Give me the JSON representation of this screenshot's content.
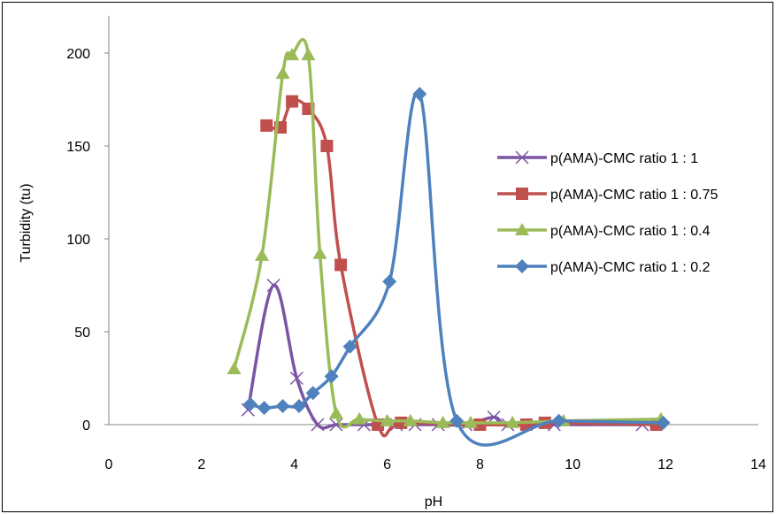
{
  "chart_data": {
    "type": "scatter",
    "title": "",
    "xlabel": "pH",
    "ylabel": "Turbidity (tu)",
    "xlim": [
      0,
      14
    ],
    "ylim": [
      0,
      220
    ],
    "x_ticks": [
      "0",
      "2",
      "4",
      "6",
      "8",
      "10",
      "12",
      "14"
    ],
    "y_ticks": [
      "0",
      "50",
      "100",
      "150",
      "200"
    ],
    "grid": false,
    "smooth_lines": true,
    "legend_position": "right",
    "series": [
      {
        "name": "p(AMA)-CMC ratio 1 : 1",
        "color": "#7b55a3",
        "marker": "x",
        "points": [
          [
            3.0,
            8
          ],
          [
            3.55,
            75
          ],
          [
            4.05,
            25
          ],
          [
            4.5,
            0
          ],
          [
            4.9,
            0
          ],
          [
            5.5,
            0
          ],
          [
            6.2,
            0
          ],
          [
            6.6,
            0
          ],
          [
            7.1,
            0
          ],
          [
            7.7,
            0
          ],
          [
            8.3,
            4
          ],
          [
            8.6,
            0
          ],
          [
            9.6,
            0
          ],
          [
            11.5,
            0
          ]
        ]
      },
      {
        "name": "p(AMA)-CMC ratio 1 : 0.75",
        "color": "#c0504d",
        "marker": "square",
        "points": [
          [
            3.4,
            161
          ],
          [
            3.7,
            160
          ],
          [
            3.95,
            174
          ],
          [
            4.3,
            170
          ],
          [
            4.7,
            150
          ],
          [
            5.0,
            86
          ],
          [
            5.8,
            0
          ],
          [
            6.3,
            1
          ],
          [
            8.0,
            0
          ],
          [
            9.0,
            0
          ],
          [
            9.4,
            1
          ],
          [
            11.8,
            0
          ]
        ]
      },
      {
        "name": "p(AMA)-CMC ratio 1 : 0.4",
        "color": "#9bbb59",
        "marker": "triangle",
        "points": [
          [
            2.7,
            30
          ],
          [
            3.3,
            91
          ],
          [
            3.75,
            189
          ],
          [
            3.95,
            199
          ],
          [
            4.3,
            199
          ],
          [
            4.55,
            92
          ],
          [
            4.9,
            6
          ],
          [
            5.4,
            3
          ],
          [
            6.0,
            2
          ],
          [
            6.5,
            2
          ],
          [
            7.2,
            1
          ],
          [
            7.8,
            1
          ],
          [
            8.7,
            1
          ],
          [
            9.8,
            2
          ],
          [
            11.9,
            3
          ]
        ]
      },
      {
        "name": "p(AMA)-CMC ratio 1 : 0.2",
        "color": "#4f81bd",
        "marker": "diamond",
        "points": [
          [
            3.05,
            11
          ],
          [
            3.35,
            9
          ],
          [
            3.75,
            10
          ],
          [
            4.1,
            10
          ],
          [
            4.4,
            17
          ],
          [
            4.8,
            26
          ],
          [
            5.2,
            42
          ],
          [
            6.05,
            77
          ],
          [
            6.7,
            178
          ],
          [
            7.5,
            2
          ],
          [
            9.7,
            2
          ],
          [
            11.95,
            1
          ]
        ]
      }
    ]
  }
}
